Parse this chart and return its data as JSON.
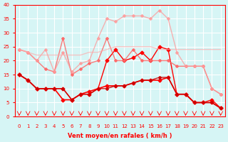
{
  "x": [
    0,
    1,
    2,
    3,
    4,
    5,
    6,
    7,
    8,
    9,
    10,
    11,
    12,
    13,
    14,
    15,
    16,
    17,
    18,
    19,
    20,
    21,
    22,
    23
  ],
  "series": [
    {
      "color": "#ff0000",
      "alpha": 1.0,
      "linewidth": 1.0,
      "marker": "D",
      "markersize": 2.5,
      "values": [
        15,
        13,
        10,
        10,
        10,
        10,
        6,
        8,
        8,
        10,
        20,
        24,
        20,
        21,
        23,
        20,
        25,
        24,
        8,
        8,
        5,
        5,
        6,
        3
      ]
    },
    {
      "color": "#ff0000",
      "alpha": 1.0,
      "linewidth": 1.2,
      "marker": "D",
      "markersize": 2.5,
      "values": [
        15,
        13,
        10,
        10,
        10,
        6,
        6,
        8,
        9,
        10,
        11,
        11,
        11,
        12,
        13,
        13,
        13,
        14,
        8,
        8,
        5,
        5,
        5,
        3
      ]
    },
    {
      "color": "#cc0000",
      "alpha": 0.9,
      "linewidth": 1.0,
      "marker": "D",
      "markersize": 2.0,
      "values": [
        15,
        13,
        10,
        10,
        10,
        10,
        6,
        8,
        8,
        10,
        10,
        11,
        11,
        12,
        13,
        13,
        14,
        14,
        8,
        8,
        5,
        5,
        5,
        3
      ]
    },
    {
      "color": "#ff6666",
      "alpha": 0.85,
      "linewidth": 1.0,
      "marker": "D",
      "markersize": 2.0,
      "values": [
        24,
        23,
        20,
        17,
        16,
        28,
        15,
        17,
        19,
        20,
        28,
        20,
        20,
        24,
        20,
        20,
        20,
        20,
        18,
        18,
        18,
        18,
        10,
        8
      ]
    },
    {
      "color": "#ff9999",
      "alpha": 0.75,
      "linewidth": 1.0,
      "marker": "D",
      "markersize": 2.0,
      "values": [
        24,
        23,
        20,
        24,
        16,
        23,
        16,
        19,
        20,
        28,
        35,
        34,
        36,
        36,
        36,
        35,
        38,
        35,
        23,
        18,
        18,
        18,
        10,
        8
      ]
    },
    {
      "color": "#ffaaaa",
      "alpha": 0.65,
      "linewidth": 1.0,
      "marker": null,
      "markersize": 0,
      "values": [
        24,
        23,
        22,
        22,
        22,
        22,
        22,
        22,
        23,
        23,
        24,
        25,
        25,
        25,
        25,
        25,
        24,
        24,
        24,
        24,
        24,
        24,
        24,
        24
      ]
    }
  ],
  "xlabel": "Vent moyen/en rafales ( km/h )",
  "ylabel": "",
  "xlim": [
    -0.5,
    23.5
  ],
  "ylim": [
    0,
    40
  ],
  "yticks": [
    0,
    5,
    10,
    15,
    20,
    25,
    30,
    35,
    40
  ],
  "xticks": [
    0,
    1,
    2,
    3,
    4,
    5,
    6,
    7,
    8,
    9,
    10,
    11,
    12,
    13,
    14,
    15,
    16,
    17,
    18,
    19,
    20,
    21,
    22,
    23
  ],
  "bg_color": "#d6f5f5",
  "grid_color": "#ffffff",
  "axis_color": "#ff0000",
  "tick_label_color": "#ff0000",
  "xlabel_color": "#ff0000",
  "ylabel_color": "#ff0000",
  "arrow_color": "#ff0000"
}
